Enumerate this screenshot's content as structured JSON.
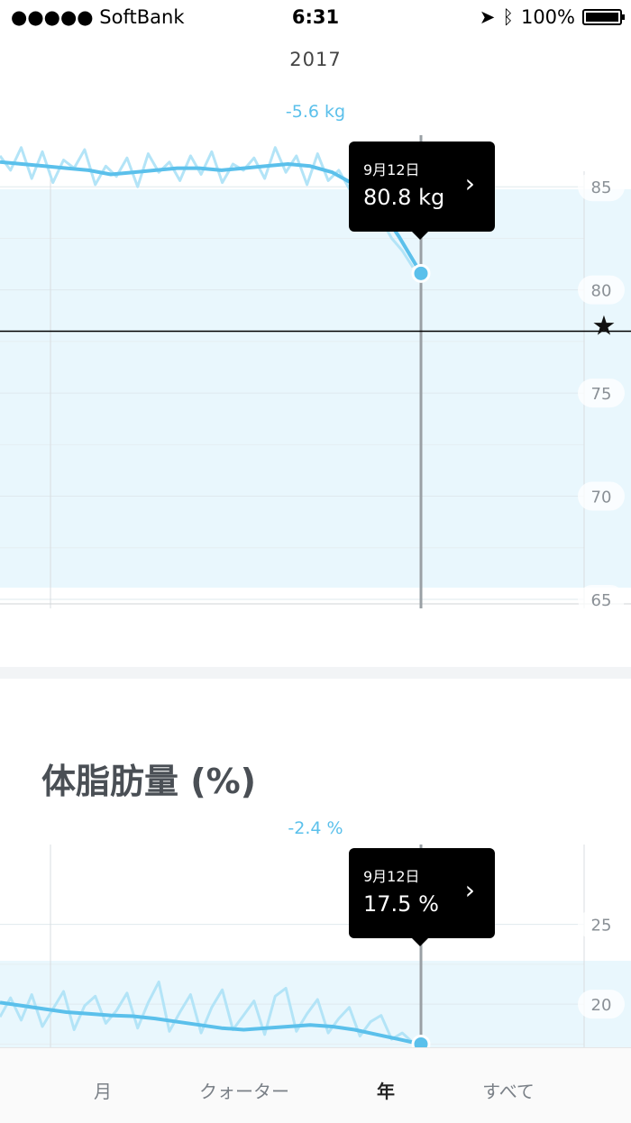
{
  "status_bar": {
    "carrier": "●●●●● SoftBank",
    "time": "6:31",
    "battery": "100%"
  },
  "header": {
    "year": "2017"
  },
  "colors": {
    "accent": "#5bc0eb",
    "band": "#e9f7fd",
    "raw": "#b3e4f7",
    "tooltip": "#000000"
  },
  "weight": {
    "change": "-5.6 kg",
    "tooltip": {
      "date": "9月12日",
      "value": "80.8 kg"
    },
    "chart_data": {
      "type": "line",
      "y_ticks": [
        "85",
        "80",
        "75",
        "70",
        "65"
      ],
      "ylim": [
        65,
        87.5
      ],
      "goal": 78,
      "goal_icon": "star-icon",
      "trend": [
        86.2,
        86.1,
        86.0,
        85.9,
        85.8,
        85.6,
        85.7,
        85.8,
        85.9,
        85.9,
        85.8,
        85.9,
        86.0,
        86.1,
        86.0,
        85.7,
        85.1,
        84.2,
        82.6,
        80.8
      ],
      "raw": [
        86.5,
        85.8,
        86.9,
        85.4,
        86.7,
        85.2,
        86.3,
        85.9,
        86.8,
        85.1,
        86.0,
        85.5,
        86.4,
        85.0,
        86.6,
        85.7,
        86.2,
        85.3,
        86.5,
        85.6,
        86.7,
        85.2,
        86.1,
        85.8,
        86.4,
        85.4,
        86.9,
        85.7,
        86.5,
        85.1,
        86.6,
        85.3,
        85.8,
        84.9,
        84.6,
        83.9,
        83.4,
        82.5,
        81.9,
        81.1
      ]
    }
  },
  "body_fat": {
    "title": "体脂肪量 (%)",
    "change": "-2.4 %",
    "tooltip": {
      "date": "9月12日",
      "value": "17.5 %"
    },
    "chart_data": {
      "type": "line",
      "y_ticks": [
        "25",
        "20"
      ],
      "ylim": [
        17.3,
        30
      ],
      "trend": [
        20.1,
        19.9,
        19.7,
        19.5,
        19.4,
        19.3,
        19.25,
        19.1,
        18.9,
        18.7,
        18.5,
        18.4,
        18.5,
        18.6,
        18.7,
        18.6,
        18.4,
        18.1,
        17.8,
        17.5
      ],
      "raw": [
        19.2,
        20.4,
        19.0,
        20.6,
        18.6,
        19.7,
        20.8,
        18.4,
        19.9,
        20.5,
        18.8,
        19.6,
        20.7,
        18.5,
        20.1,
        21.4,
        18.3,
        19.5,
        20.6,
        18.2,
        19.8,
        20.9,
        18.4,
        19.3,
        20.2,
        18.1,
        20.5,
        21.0,
        18.3,
        19.4,
        20.3,
        18.2,
        19.1,
        19.8,
        18.0,
        18.9,
        19.3,
        17.8,
        18.2,
        17.6
      ]
    }
  },
  "tabs": [
    {
      "label": "月",
      "active": false
    },
    {
      "label": "クォーター",
      "active": false
    },
    {
      "label": "年",
      "active": true
    },
    {
      "label": "すべて",
      "active": false
    }
  ]
}
